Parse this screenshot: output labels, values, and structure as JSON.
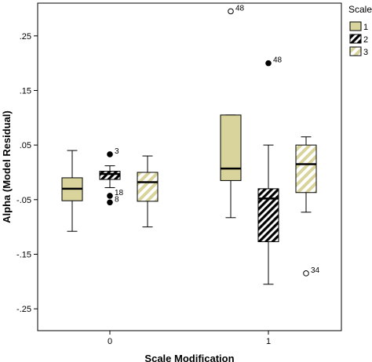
{
  "colors": {
    "box_fill": "#d8d49c",
    "stroke": "#000000",
    "background": "#ffffff"
  },
  "chart_data": {
    "type": "boxplot",
    "xlabel": "Scale Modification",
    "ylabel": "Alpha (Model Residual)",
    "ylim": [
      -0.29,
      0.31
    ],
    "yticks": [
      0.25,
      0.15,
      0.05,
      -0.05,
      -0.15,
      -0.25
    ],
    "ytick_labels": [
      ".25",
      ".15",
      ".05",
      "-.05",
      "-.15",
      "-.25"
    ],
    "categories": [
      "0",
      "1"
    ],
    "legend_title": "Scale",
    "legend_position": "top-right",
    "series": [
      {
        "name": "1",
        "pattern": "solid",
        "boxes": [
          {
            "category": "0",
            "whisker_low": -0.108,
            "q1": -0.052,
            "median": -0.03,
            "q3": -0.01,
            "whisker_high": 0.04,
            "outliers": []
          },
          {
            "category": "1",
            "whisker_low": -0.083,
            "q1": -0.015,
            "median": 0.007,
            "q3": 0.105,
            "whisker_high": 0.105,
            "outliers": [
              {
                "value": 0.295,
                "label": "48",
                "style": "open"
              }
            ]
          }
        ]
      },
      {
        "name": "2",
        "pattern": "dense-diagonal",
        "boxes": [
          {
            "category": "0",
            "whisker_low": -0.028,
            "q1": -0.013,
            "median": -0.003,
            "q3": 0.002,
            "whisker_high": 0.012,
            "outliers": [
              {
                "value": 0.033,
                "label": "3",
                "style": "filled"
              },
              {
                "value": -0.043,
                "label": "18",
                "style": "filled"
              },
              {
                "value": -0.055,
                "label": "8",
                "style": "filled"
              }
            ]
          },
          {
            "category": "1",
            "whisker_low": -0.205,
            "q1": -0.127,
            "median": -0.048,
            "q3": -0.03,
            "whisker_high": 0.05,
            "outliers": [
              {
                "value": 0.2,
                "label": "48",
                "style": "filled"
              }
            ]
          }
        ]
      },
      {
        "name": "3",
        "pattern": "wide-diagonal",
        "boxes": [
          {
            "category": "0",
            "whisker_low": -0.1,
            "q1": -0.053,
            "median": -0.018,
            "q3": 0.0,
            "whisker_high": 0.03,
            "outliers": []
          },
          {
            "category": "1",
            "whisker_low": -0.073,
            "q1": -0.037,
            "median": 0.015,
            "q3": 0.05,
            "whisker_high": 0.065,
            "outliers": [
              {
                "value": -0.185,
                "label": "34",
                "style": "open"
              }
            ]
          }
        ]
      }
    ]
  }
}
